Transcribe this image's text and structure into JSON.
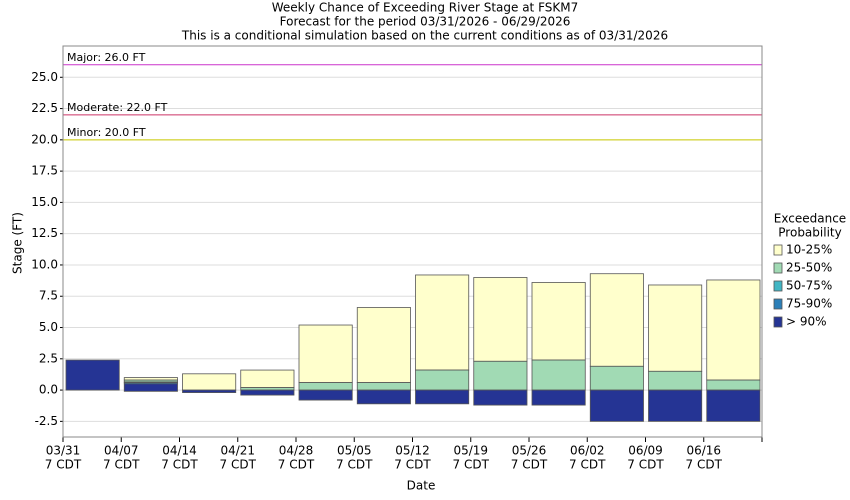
{
  "chart_data": {
    "type": "floating-bar",
    "title": [
      "Weekly Chance of Exceeding River Stage at FSKM7",
      "Forecast for the period 03/31/2026 - 06/29/2026",
      "This is a conditional simulation based on the current conditions as of 03/31/2026"
    ],
    "x_label": "Date",
    "y_label": "Stage (FT)",
    "tick_suffix": "7 CDT",
    "categories": [
      "03/31",
      "04/07",
      "04/14",
      "04/21",
      "04/28",
      "05/05",
      "05/12",
      "05/19",
      "05/26",
      "06/02",
      "06/09",
      "06/16"
    ],
    "ylim": [
      -3.75,
      27.5
    ],
    "yticks": [
      -2.5,
      {
        "value": 0,
        "label": "0.0"
      },
      2.5,
      {
        "value": 5,
        "label": "5.0"
      },
      7.5,
      {
        "value": 10,
        "label": "10.0"
      },
      12.5,
      {
        "value": 15,
        "label": "15.0"
      },
      17.5,
      {
        "value": 20,
        "label": "20.0"
      },
      22.5,
      {
        "value": 25,
        "label": "25.0"
      }
    ],
    "grid": true,
    "legend_title": [
      "Exceedance",
      "Probability"
    ],
    "series": [
      {
        "name": "10-25%",
        "color": "#ffffcc",
        "low": [
          null,
          0.8,
          0,
          0.2,
          0.6,
          0.6,
          1.6,
          2.3,
          2.4,
          1.9,
          1.5,
          0.8
        ],
        "high": [
          null,
          1.0,
          1.3,
          1.6,
          5.2,
          6.6,
          9.2,
          9.0,
          8.6,
          9.3,
          8.4,
          8.8
        ]
      },
      {
        "name": "25-50%",
        "color": "#a1dab4",
        "low": [
          null,
          0.65,
          null,
          0,
          0,
          0,
          0,
          0,
          0,
          0,
          0,
          0
        ],
        "high": [
          null,
          0.8,
          null,
          0.2,
          0.6,
          0.6,
          1.6,
          2.3,
          2.4,
          1.9,
          1.5,
          0.8
        ]
      },
      {
        "name": "50-75%",
        "color": "#41b6c4",
        "low": [
          null,
          0.6,
          null,
          null,
          null,
          null,
          null,
          null,
          null,
          null,
          null,
          null
        ],
        "high": [
          null,
          0.65,
          null,
          null,
          null,
          null,
          null,
          null,
          null,
          null,
          null,
          null
        ]
      },
      {
        "name": "75-90%",
        "color": "#2c7fb8",
        "low": [
          null,
          0.5,
          null,
          null,
          null,
          null,
          null,
          null,
          null,
          null,
          null,
          null
        ],
        "high": [
          null,
          0.6,
          null,
          null,
          null,
          null,
          null,
          null,
          null,
          null,
          null,
          null
        ]
      },
      {
        "name": "> 90%",
        "color": "#253494",
        "low": [
          0,
          -0.1,
          -0.2,
          -0.4,
          -0.8,
          -1.1,
          -1.1,
          -1.2,
          -1.2,
          -2.5,
          -2.5,
          -2.5
        ],
        "high": [
          2.4,
          0.5,
          0,
          0,
          0,
          0,
          0,
          0,
          0,
          0,
          0,
          0
        ]
      }
    ],
    "thresholds": [
      {
        "label": "Major: 26.0 FT",
        "value": 26,
        "color": "#cc33cc"
      },
      {
        "label": "Moderate: 22.0 FT",
        "value": 22,
        "color": "#cc3366"
      },
      {
        "label": "Minor: 20.0 FT",
        "value": 20,
        "color": "#cccc00"
      }
    ]
  }
}
